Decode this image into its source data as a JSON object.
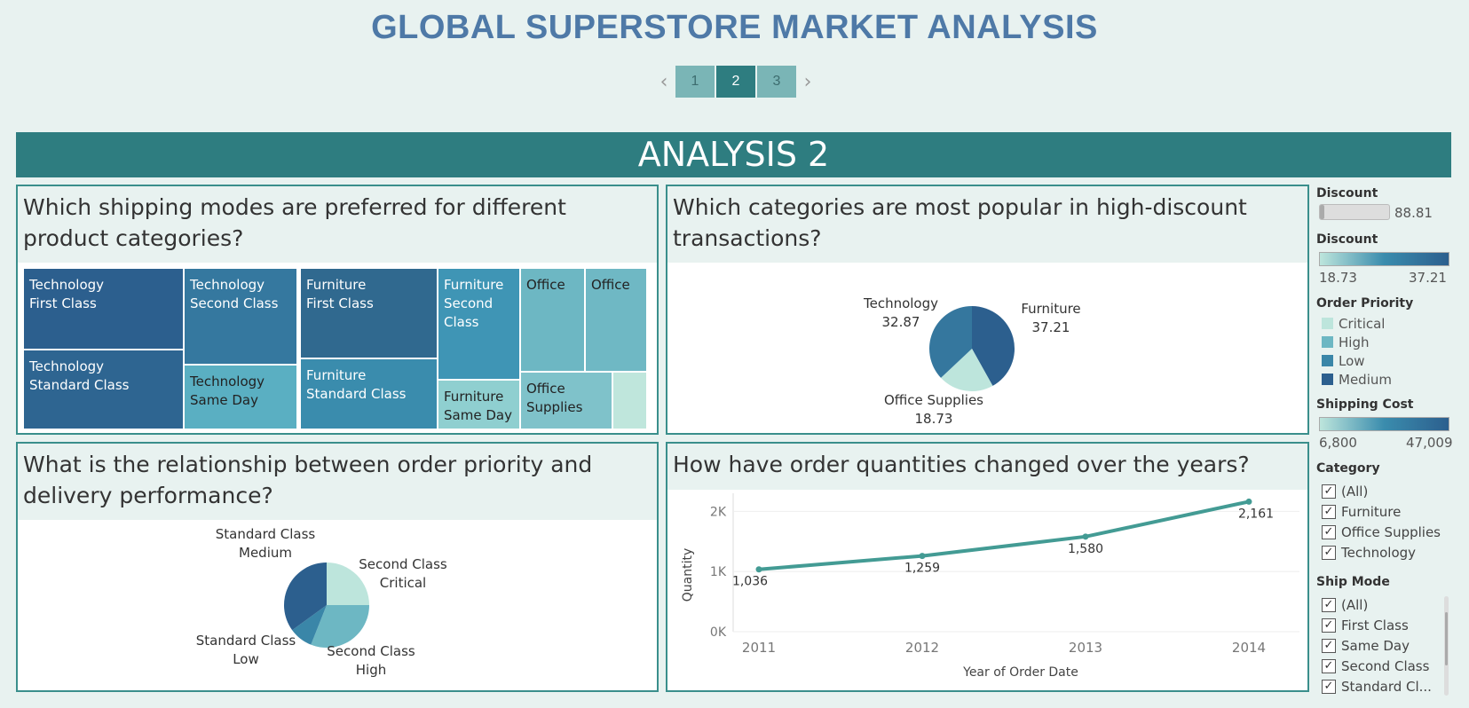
{
  "header": {
    "title": "GLOBAL SUPERSTORE MARKET ANALYSIS",
    "pager": {
      "prev_icon": "chevron-left-icon",
      "next_icon": "chevron-right-icon",
      "pages": [
        "1",
        "2",
        "3"
      ],
      "active": "2"
    }
  },
  "banner": {
    "title": "ANALYSIS 2"
  },
  "panels": {
    "shipping": {
      "question": "Which shipping modes are preferred for different product categories?"
    },
    "discount": {
      "question": "Which categories are most popular in high-discount transactions?"
    },
    "priority": {
      "question": "What is the relationship between order priority and delivery performance?"
    },
    "quantity": {
      "question": "How have order quantities changed over the years?"
    }
  },
  "treemap": {
    "tiles": [
      {
        "line1": "Technology",
        "line2": "First Class",
        "line3": "",
        "color": "#2c5f8e"
      },
      {
        "line1": "Technology",
        "line2": "Standard Class",
        "line3": "",
        "color": "#2e6591"
      },
      {
        "line1": "Technology",
        "line2": "Second Class",
        "line3": "",
        "color": "#35789f"
      },
      {
        "line1": "Technology",
        "line2": "Same Day",
        "line3": "",
        "color": "#5aafc2"
      },
      {
        "line1": "Furniture",
        "line2": "First Class",
        "line3": "",
        "color": "#30698f"
      },
      {
        "line1": "Furniture",
        "line2": "Standard Class",
        "line3": "",
        "color": "#3a8cad"
      },
      {
        "line1": "Furniture",
        "line2": "Second",
        "line3": "Class",
        "color": "#3f95b5"
      },
      {
        "line1": "Furniture",
        "line2": "Same Day",
        "line3": "",
        "color": "#8fcfd0"
      },
      {
        "line1": "Office",
        "line2": "",
        "line3": "",
        "color": "#6db7c3"
      },
      {
        "line1": "Office",
        "line2": "",
        "line3": "",
        "color": "#6fb8c4"
      },
      {
        "line1": "Office",
        "line2": "Supplies",
        "line3": "",
        "color": "#7fc2ca"
      },
      {
        "line1": "",
        "line2": "",
        "line3": "",
        "color": "#bfe6dc"
      }
    ]
  },
  "discount_pie": {
    "slices": [
      {
        "name": "Furniture",
        "value": "37.21",
        "color": "#2c5f8e"
      },
      {
        "name": "Office Supplies",
        "value": "18.73",
        "color": "#bde5dc"
      },
      {
        "name": "Technology",
        "value": "32.87",
        "color": "#35779e"
      }
    ]
  },
  "priority_pie": {
    "slices": [
      {
        "line1": "Second Class",
        "line2": "Critical",
        "share": 0.25,
        "color": "#bde5dc"
      },
      {
        "line1": "Second Class",
        "line2": "High",
        "share": 0.31,
        "color": "#6db7c3"
      },
      {
        "line1": "Standard Class",
        "line2": "Low",
        "share": 0.09,
        "color": "#3a86a8"
      },
      {
        "line1": "Standard Class",
        "line2": "Medium",
        "share": 0.35,
        "color": "#2c5f8e"
      }
    ]
  },
  "chart_data": {
    "type": "line",
    "title": "How have order quantities changed over the years?",
    "x": [
      "2011",
      "2012",
      "2013",
      "2014"
    ],
    "series": [
      {
        "values": [
          1036,
          1259,
          1580,
          2161
        ]
      }
    ],
    "data_labels": [
      "1,036",
      "1,259",
      "1,580",
      "2,161"
    ],
    "xlabel": "Year of Order Date",
    "ylabel": "Quantity",
    "yticks": [
      "0K",
      "1K",
      "2K"
    ],
    "ylim": [
      0,
      2300
    ],
    "grid": true,
    "line_color": "#439b94"
  },
  "sidebar": {
    "discount_slider": {
      "title": "Discount",
      "value": "88.81"
    },
    "discount_legend": {
      "title": "Discount",
      "min": "18.73",
      "max": "37.21"
    },
    "order_priority": {
      "title": "Order Priority",
      "items": [
        {
          "label": "Critical",
          "color": "#bde5dc"
        },
        {
          "label": "High",
          "color": "#6db7c3"
        },
        {
          "label": "Low",
          "color": "#3a86a8"
        },
        {
          "label": "Medium",
          "color": "#2c5f8e"
        }
      ]
    },
    "shipping_cost": {
      "title": "Shipping Cost",
      "min": "6,800",
      "max": "47,009"
    },
    "category": {
      "title": "Category",
      "items": [
        "(All)",
        "Furniture",
        "Office Supplies",
        "Technology"
      ]
    },
    "ship_mode": {
      "title": "Ship Mode",
      "items": [
        "(All)",
        "First Class",
        "Same Day",
        "Second Class",
        "Standard Cl..."
      ]
    }
  }
}
